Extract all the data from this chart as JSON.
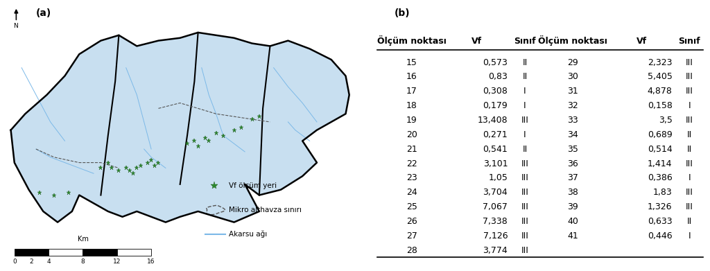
{
  "panel_b_title": "(b)",
  "panel_a_title": "(a)",
  "col_headers": [
    "Ölçüm noktası",
    "Vf",
    "Sınıf",
    "Ölçüm noktası",
    "Vf",
    "Sınıf"
  ],
  "rows": [
    [
      "15",
      "0,573",
      "II",
      "29",
      "2,323",
      "III"
    ],
    [
      "16",
      "0,83",
      "II",
      "30",
      "5,405",
      "III"
    ],
    [
      "17",
      "0,308",
      "I",
      "31",
      "4,878",
      "III"
    ],
    [
      "18",
      "0,179",
      "I",
      "32",
      "0,158",
      "I"
    ],
    [
      "19",
      "13,408",
      "III",
      "33",
      "3,5",
      "III"
    ],
    [
      "20",
      "0,271",
      "I",
      "34",
      "0,689",
      "II"
    ],
    [
      "21",
      "0,541",
      "II",
      "35",
      "0,514",
      "II"
    ],
    [
      "22",
      "3,101",
      "III",
      "36",
      "1,414",
      "III"
    ],
    [
      "23",
      "1,05",
      "III",
      "37",
      "0,386",
      "I"
    ],
    [
      "24",
      "3,704",
      "III",
      "38",
      "1,83",
      "III"
    ],
    [
      "25",
      "7,067",
      "III",
      "39",
      "1,326",
      "III"
    ],
    [
      "26",
      "7,338",
      "III",
      "40",
      "0,633",
      "II"
    ],
    [
      "27",
      "7,126",
      "III",
      "41",
      "0,446",
      "I"
    ],
    [
      "28",
      "3,774",
      "III",
      "",
      "",
      ""
    ]
  ],
  "scale_ticks": [
    "0",
    "2",
    "4",
    "8",
    "12",
    "16"
  ],
  "background_color": "#ffffff",
  "header_fontsize": 9,
  "cell_fontsize": 9,
  "map_bg_color": "#ffffff",
  "basin_fill_color": "#c8dff0",
  "star_color": "#2d8a2d",
  "star_edge_color": "#1a5a1a",
  "legend_line_color": "#7cb9e8",
  "legend_dashed_color": "#555555"
}
